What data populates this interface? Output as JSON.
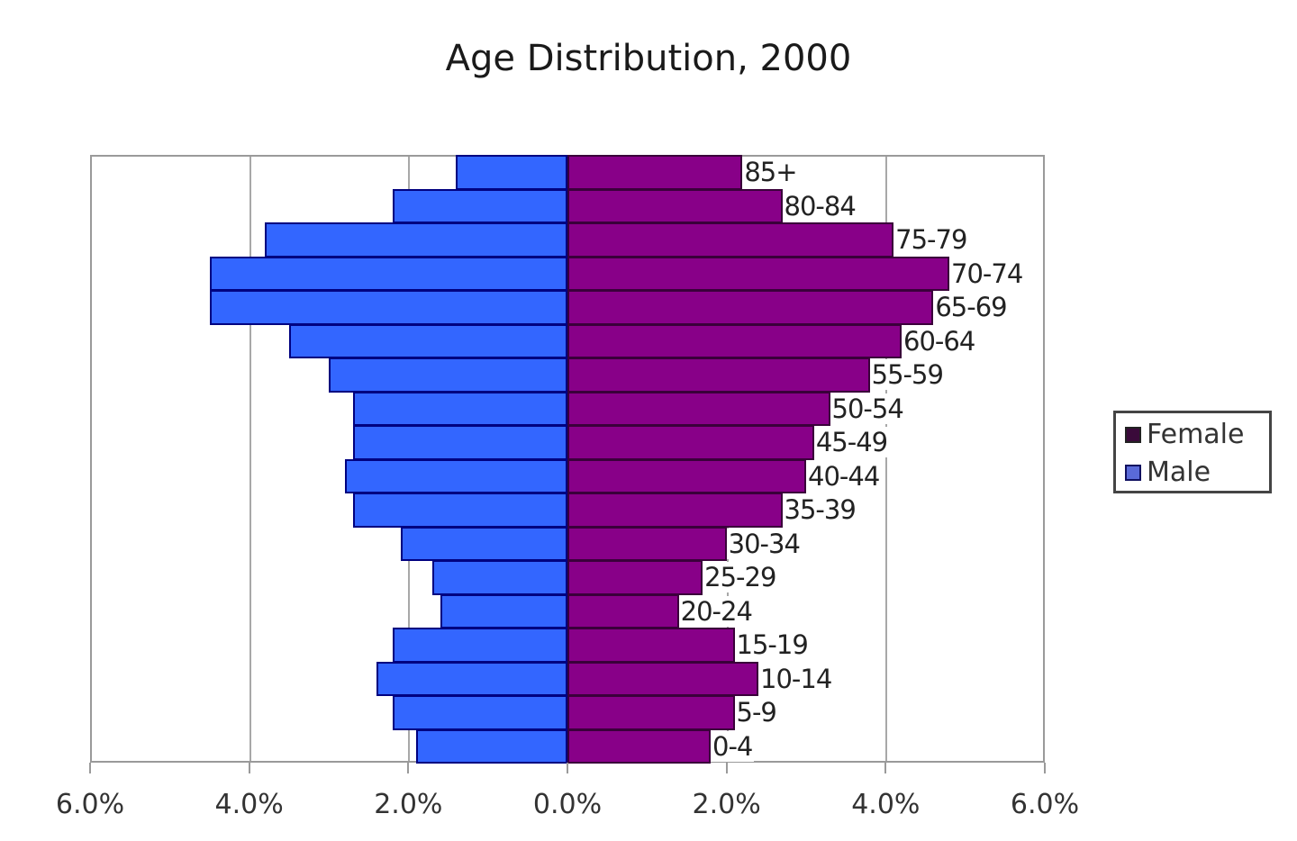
{
  "chart_data": {
    "type": "bar",
    "orientation": "horizontal",
    "subtype": "population-pyramid",
    "title": "Age Distribution, 2000",
    "xlabel": "",
    "ylabel": "",
    "xlim": [
      -6.0,
      6.0
    ],
    "x_ticks": [
      "6.0%",
      "4.0%",
      "2.0%",
      "0.0%",
      "2.0%",
      "4.0%",
      "6.0%"
    ],
    "grid": "vertical gridlines at 2% intervals",
    "legend_position": "right",
    "categories": [
      "85+",
      "80-84",
      "75-79",
      "70-74",
      "65-69",
      "60-64",
      "55-59",
      "50-54",
      "45-49",
      "40-44",
      "35-39",
      "30-34",
      "25-29",
      "20-24",
      "15-19",
      "10-14",
      "5-9",
      "0-4"
    ],
    "series": [
      {
        "name": "Female",
        "color": "#880088",
        "side": "right",
        "values": [
          2.2,
          2.7,
          4.1,
          4.8,
          4.6,
          4.2,
          3.8,
          3.3,
          3.1,
          3.0,
          2.7,
          2.0,
          1.7,
          1.4,
          2.1,
          2.4,
          2.1,
          1.8
        ]
      },
      {
        "name": "Male",
        "color": "#3366ff",
        "side": "left",
        "values": [
          1.4,
          2.2,
          3.8,
          4.5,
          4.5,
          3.5,
          3.0,
          2.7,
          2.7,
          2.8,
          2.7,
          2.1,
          1.7,
          1.6,
          2.2,
          2.4,
          2.2,
          1.9
        ]
      }
    ]
  },
  "legend": {
    "items": [
      {
        "label": "Female",
        "color": "#880088"
      },
      {
        "label": "Male",
        "color": "#3366ff"
      }
    ]
  }
}
